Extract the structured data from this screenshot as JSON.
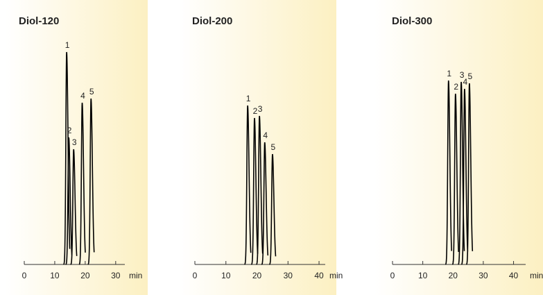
{
  "chart_data": [
    {
      "type": "chromatogram",
      "title": "Diol-120",
      "xlabel": "min",
      "color": "#000000",
      "categories": [
        "1",
        "2",
        "3",
        "4",
        "5"
      ],
      "x": [
        13.9,
        14.6,
        16.2,
        19.0,
        21.9
      ],
      "values": [
        306,
        183,
        166,
        233,
        239
      ],
      "xlim": [
        0,
        33
      ],
      "xticks": [
        0,
        10,
        20,
        30
      ],
      "ylim": [
        0,
        320
      ]
    },
    {
      "type": "chromatogram",
      "title": "Diol-200",
      "xlabel": "min",
      "color": "#000000",
      "categories": [
        "1",
        "2",
        "3",
        "4",
        "5"
      ],
      "x": [
        17.0,
        19.2,
        20.8,
        22.5,
        25.0
      ],
      "values": [
        229,
        211,
        214,
        176,
        159
      ],
      "xlim": [
        0,
        42
      ],
      "xticks": [
        0,
        10,
        20,
        30,
        40
      ],
      "ylim": [
        0,
        320
      ]
    },
    {
      "type": "chromatogram",
      "title": "Diol-300",
      "xlabel": "min",
      "color": "#000000",
      "categories": [
        "1",
        "2",
        "3",
        "4",
        "5"
      ],
      "x": [
        18.5,
        20.8,
        22.7,
        23.8,
        25.4
      ],
      "values": [
        265,
        246,
        263,
        253,
        261
      ],
      "xlim": [
        0,
        44
      ],
      "xticks": [
        0,
        10,
        20,
        30,
        40
      ],
      "ylim": [
        0,
        320
      ]
    }
  ]
}
